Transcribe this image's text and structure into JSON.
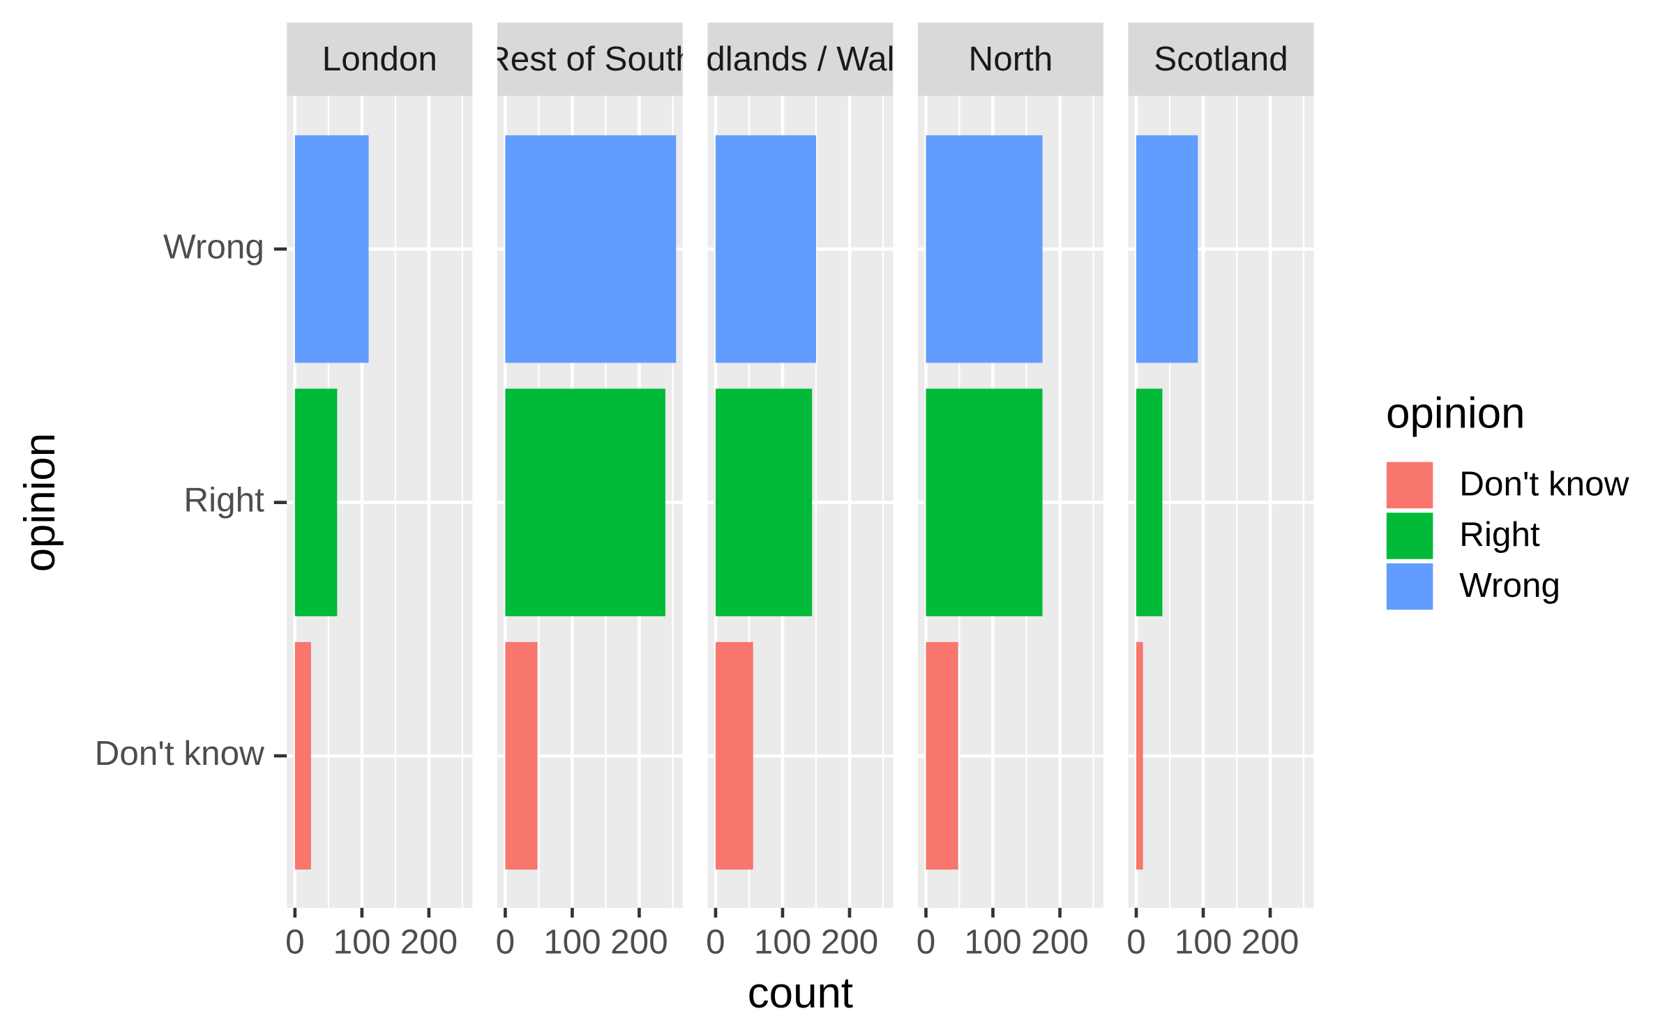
{
  "chart_data": {
    "type": "bar",
    "orientation": "horizontal",
    "xlabel": "count",
    "ylabel": "opinion",
    "legend_title": "opinion",
    "legend": "right",
    "categories": [
      "Don't know",
      "Right",
      "Wrong"
    ],
    "colors": [
      "#f8766d",
      "#00ba38",
      "#619cff"
    ],
    "panels": [
      {
        "title": "London",
        "values": [
          24,
          63,
          110
        ]
      },
      {
        "title": "Rest of South",
        "values": [
          48,
          239,
          255
        ]
      },
      {
        "title": "Midlands / Wales",
        "values": [
          56,
          144,
          150
        ]
      },
      {
        "title": "North",
        "values": [
          48,
          174,
          174
        ]
      },
      {
        "title": "Scotland",
        "values": [
          10,
          39,
          92
        ]
      }
    ],
    "xlim": [
      -12,
      265
    ],
    "xticks": [
      0,
      100,
      200
    ],
    "xminor": [
      50,
      150,
      250
    ],
    "grid": true
  }
}
